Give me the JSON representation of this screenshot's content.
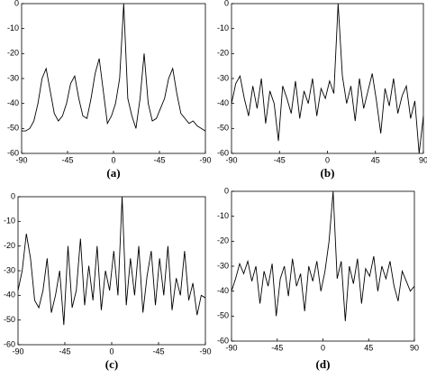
{
  "chart_data": [
    {
      "type": "line",
      "caption": "(a)",
      "color": "#000000",
      "x": [
        -90,
        -86,
        -82,
        -78,
        -74,
        -70,
        -66,
        -62,
        -58,
        -54,
        -50,
        -46,
        -42,
        -38,
        -34,
        -30,
        -26,
        -22,
        -18,
        -14,
        -10,
        -6,
        -2,
        2,
        6,
        10,
        14,
        18,
        22,
        26,
        30,
        34,
        38,
        42,
        46,
        50,
        54,
        58,
        62,
        66,
        70,
        74,
        78,
        82,
        86,
        90
      ],
      "values": [
        -51,
        -51,
        -50,
        -47,
        -40,
        -30,
        -26,
        -35,
        -44,
        -47,
        -45,
        -40,
        -32,
        -29,
        -38,
        -45,
        -46,
        -38,
        -28,
        -22,
        -35,
        -48,
        -45,
        -40,
        -30,
        0,
        -38,
        -45,
        -50,
        -38,
        -20,
        -40,
        -47,
        -46,
        -42,
        -38,
        -30,
        -26,
        -36,
        -44,
        -46,
        -48,
        -47,
        -49,
        -50,
        -51
      ],
      "xlim": [
        -90,
        90
      ],
      "ylim": [
        -60,
        0
      ],
      "xticks": [
        -90,
        -45,
        0,
        {
          "value": 45,
          "label": "-45"
        },
        {
          "value": 90,
          "label": "-90"
        }
      ],
      "yticks": [
        0,
        -10,
        -20,
        -30,
        -40,
        -50,
        -60
      ]
    },
    {
      "type": "line",
      "caption": "(b)",
      "color": "#000000",
      "x": [
        -90,
        -86,
        -82,
        -78,
        -74,
        -70,
        -66,
        -62,
        -58,
        -54,
        -50,
        -46,
        -42,
        -38,
        -34,
        -30,
        -26,
        -22,
        -18,
        -14,
        -10,
        -6,
        -2,
        2,
        6,
        10,
        14,
        18,
        22,
        26,
        30,
        34,
        38,
        42,
        46,
        50,
        54,
        58,
        62,
        66,
        70,
        74,
        78,
        82,
        86,
        90
      ],
      "values": [
        -40,
        -32,
        -29,
        -38,
        -45,
        -33,
        -42,
        -30,
        -48,
        -35,
        -40,
        -55,
        -33,
        -38,
        -44,
        -31,
        -46,
        -35,
        -40,
        -30,
        -45,
        -34,
        -38,
        -31,
        -36,
        0,
        -29,
        -40,
        -33,
        -47,
        -30,
        -42,
        -35,
        -28,
        -39,
        -52,
        -34,
        -41,
        -30,
        -44,
        -37,
        -33,
        -46,
        -39,
        -60,
        -45
      ],
      "xlim": [
        -90,
        90
      ],
      "ylim": [
        -60,
        0
      ],
      "xticks": [
        -90,
        -45,
        0,
        45,
        90
      ],
      "yticks": [
        0,
        -10,
        -20,
        -30,
        -40,
        -50,
        -60
      ]
    },
    {
      "type": "line",
      "caption": "(c)",
      "color": "#000000",
      "x": [
        -90,
        -86,
        -82,
        -78,
        -74,
        -70,
        -66,
        -62,
        -58,
        -54,
        -50,
        -46,
        -42,
        -38,
        -34,
        -30,
        -26,
        -22,
        -18,
        -14,
        -10,
        -6,
        -2,
        2,
        6,
        10,
        14,
        18,
        22,
        26,
        30,
        34,
        38,
        42,
        46,
        50,
        54,
        58,
        62,
        66,
        70,
        74,
        78,
        82,
        86,
        90
      ],
      "values": [
        -38,
        -30,
        -15,
        -25,
        -42,
        -45,
        -38,
        -25,
        -47,
        -40,
        -30,
        -52,
        -20,
        -45,
        -38,
        -17,
        -44,
        -28,
        -42,
        -20,
        -46,
        -30,
        -38,
        -22,
        -40,
        0,
        -44,
        -25,
        -40,
        -20,
        -47,
        -32,
        -22,
        -44,
        -25,
        -40,
        -20,
        -46,
        -33,
        -40,
        -22,
        -42,
        -35,
        -48,
        -40,
        -41
      ],
      "xlim": [
        -90,
        90
      ],
      "ylim": [
        -60,
        0
      ],
      "xticks": [
        -90,
        -45,
        0,
        {
          "value": 45,
          "label": "-45"
        },
        {
          "value": 90,
          "label": "-90"
        }
      ],
      "yticks": [
        0,
        -10,
        -20,
        -30,
        -40,
        -50,
        -60
      ]
    },
    {
      "type": "line",
      "caption": "(d)",
      "color": "#000000",
      "x": [
        -90,
        -86,
        -82,
        -78,
        -74,
        -70,
        -66,
        -62,
        -58,
        -54,
        -50,
        -46,
        -42,
        -38,
        -34,
        -30,
        -26,
        -22,
        -18,
        -14,
        -10,
        -6,
        -2,
        2,
        6,
        10,
        14,
        18,
        22,
        26,
        30,
        34,
        38,
        42,
        46,
        50,
        54,
        58,
        62,
        66,
        70,
        74,
        78,
        82,
        86,
        90
      ],
      "values": [
        -40,
        -35,
        -29,
        -33,
        -28,
        -36,
        -30,
        -45,
        -32,
        -38,
        -29,
        -50,
        -35,
        -30,
        -42,
        -27,
        -38,
        -33,
        -48,
        -30,
        -36,
        -28,
        -40,
        -32,
        -20,
        0,
        -35,
        -28,
        -52,
        -30,
        -37,
        -27,
        -45,
        -31,
        -34,
        -26,
        -40,
        -30,
        -35,
        -28,
        -38,
        -44,
        -32,
        -36,
        -40,
        -38
      ],
      "xlim": [
        -90,
        90
      ],
      "ylim": [
        -60,
        0
      ],
      "xticks": [
        -90,
        -45,
        0,
        45,
        90
      ],
      "yticks": [
        0,
        -10,
        -20,
        -30,
        -40,
        -50,
        -60
      ]
    }
  ]
}
